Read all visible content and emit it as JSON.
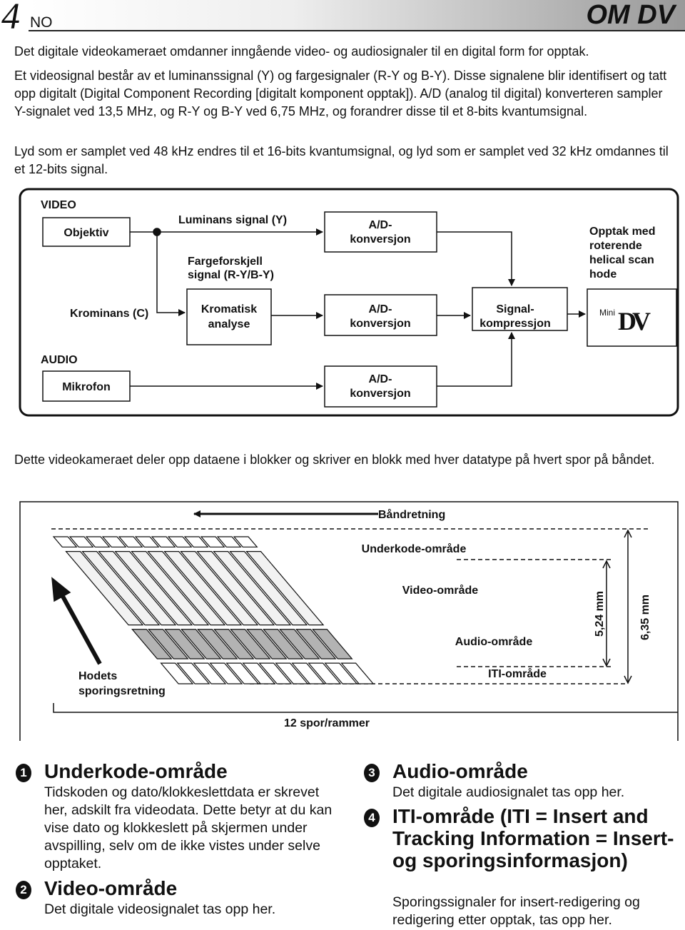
{
  "header": {
    "page_number": "4",
    "language": "NO",
    "section": "OM DV"
  },
  "intro": [
    "Det digitale videokameraet omdanner inngående video- og audiosignaler til en digital form for opptak.",
    "Et videosignal består av et luminanssignal (Y) og fargesignaler (R-Y og B-Y). Disse signalene blir identifisert og tatt opp digitalt (Digital Component Recording [digitalt komponent opptak]). A/D (analog til digital) konverteren sampler Y-signalet ved 13,5 MHz, og R-Y og B-Y ved 6,75 MHz, og forandrer disse til et 8-bits kvantumsignal.",
    "Lyd som er samplet ved 48 kHz endres til et 16-bits kvantumsignal, og lyd som er samplet ved 32 kHz omdannes til et 12-bits signal."
  ],
  "block_diagram": {
    "video_label": "VIDEO",
    "audio_label": "AUDIO",
    "objektiv": "Objektiv",
    "luminans": "Luminans signal (Y)",
    "fargeforskjell": [
      "Fargeforskjell",
      "signal (R-Y/B-Y)"
    ],
    "krominans": "Krominans (C)",
    "kromatisk": [
      "Kromatisk",
      "analyse"
    ],
    "ad_conversions": [
      [
        "A/D-",
        "konversjon"
      ],
      [
        "A/D-",
        "konversjon"
      ],
      [
        "A/D-",
        "konversjon"
      ]
    ],
    "signal": [
      "Signal-",
      "kompressjon"
    ],
    "opptak": [
      "Opptak med",
      "roterende",
      "helical scan",
      "hode"
    ],
    "logo_mini": "Mini",
    "logo_dv": "DV",
    "mikrofon": "Mikrofon"
  },
  "middle_text": "Dette videokameraet deler opp dataene i blokker og skriver en blokk med hver datatype på hvert spor på båndet.",
  "tape_diagram": {
    "direction": "Båndretning",
    "subcode": "Underkode-område",
    "video": "Video-område",
    "audio": "Audio-område",
    "iti": "ITI-område",
    "head_direction": [
      "Hodets",
      "sporingsretning"
    ],
    "tracks": "12 spor/rammer",
    "dim_small": "5,24 mm",
    "dim_large": "6,35 mm"
  },
  "sections": [
    {
      "number": "1",
      "title": "Underkode-område",
      "body": "Tidskoden og dato/klokkeslettdata er skrevet her, adskilt fra videodata. Dette betyr at du kan vise dato og klokkeslett på skjermen under avspilling, selv om de ikke vistes under selve opptaket."
    },
    {
      "number": "2",
      "title": "Video-område",
      "body": "Det digitale videosignalet tas opp her."
    },
    {
      "number": "3",
      "title": "Audio-område",
      "body": "Det digitale audiosignalet tas opp her."
    },
    {
      "number": "4",
      "title": "ITI-område (ITI = Insert and Tracking Information = Insert- og sporingsinformasjon)",
      "body": "Sporingssignaler for insert-redigering og redigering etter opptak, tas opp her."
    }
  ]
}
